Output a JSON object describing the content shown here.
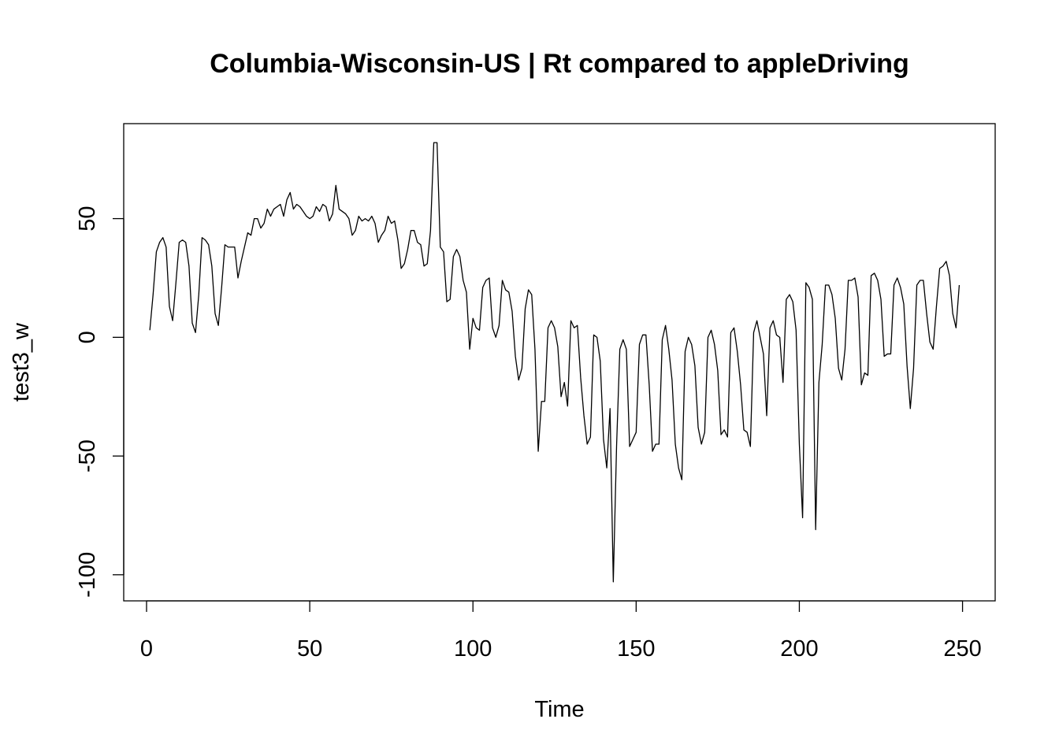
{
  "chart_data": {
    "type": "line",
    "title": "Columbia-Wisconsin-US | Rt compared to appleDriving",
    "xlabel": "Time",
    "ylabel": "test3_w",
    "xlim": [
      -7,
      260
    ],
    "ylim": [
      -111,
      90
    ],
    "xticks": [
      0,
      50,
      100,
      150,
      200,
      250
    ],
    "yticks": [
      -100,
      -50,
      0,
      50
    ],
    "grid": false,
    "line_color": "#000000",
    "x_start": 1,
    "series": [
      {
        "values": [
          3,
          18,
          36,
          40,
          42,
          38,
          13,
          7,
          23,
          40,
          41,
          40,
          30,
          6,
          2,
          18,
          42,
          41,
          39,
          30,
          10,
          5,
          21,
          39,
          38,
          38,
          38,
          25,
          32,
          38,
          44,
          43,
          50,
          50,
          46,
          48,
          54,
          51,
          54,
          55,
          56,
          51,
          58,
          61,
          54,
          56,
          55,
          53,
          51,
          50,
          51,
          55,
          53,
          56,
          55,
          49,
          52,
          64,
          54,
          53,
          52,
          50,
          43,
          45,
          51,
          49,
          50,
          49,
          51,
          48,
          40,
          43,
          45,
          51,
          48,
          49,
          41,
          29,
          31,
          37,
          45,
          45,
          40,
          39,
          30,
          31,
          45,
          82,
          82,
          38,
          36,
          15,
          16,
          34,
          37,
          34,
          24,
          19,
          -5,
          8,
          4,
          3,
          21,
          24,
          25,
          4,
          0,
          5,
          24,
          20,
          19,
          11,
          -8,
          -18,
          -13,
          12,
          20,
          18,
          -5,
          -48,
          -27,
          -27,
          4,
          7,
          4,
          -4,
          -25,
          -19,
          -29,
          7,
          4,
          5,
          -17,
          -33,
          -45,
          -42,
          1,
          0,
          -10,
          -43,
          -55,
          -30,
          -103,
          -46,
          -5,
          -1,
          -5,
          -46,
          -43,
          -40,
          -3,
          1,
          1,
          -20,
          -48,
          -45,
          -45,
          -1,
          5,
          -5,
          -18,
          -45,
          -55,
          -60,
          -6,
          0,
          -3,
          -12,
          -38,
          -45,
          -40,
          0,
          3,
          -3,
          -14,
          -41,
          -39,
          -42,
          2,
          4,
          -6,
          -20,
          -39,
          -40,
          -46,
          2,
          7,
          0,
          -7,
          -33,
          4,
          7,
          1,
          0,
          -19,
          16,
          18,
          15,
          3,
          -45,
          -76,
          23,
          21,
          16,
          -81,
          -19,
          -3,
          22,
          22,
          18,
          8,
          -13,
          -18,
          -5,
          24,
          24,
          25,
          17,
          -20,
          -15,
          -16,
          26,
          27,
          24,
          16,
          -8,
          -7,
          -7,
          22,
          25,
          21,
          14,
          -12,
          -30,
          -13,
          22,
          24,
          24,
          10,
          -2,
          -5,
          13,
          29,
          30,
          32,
          26,
          10,
          4,
          22
        ]
      }
    ]
  }
}
